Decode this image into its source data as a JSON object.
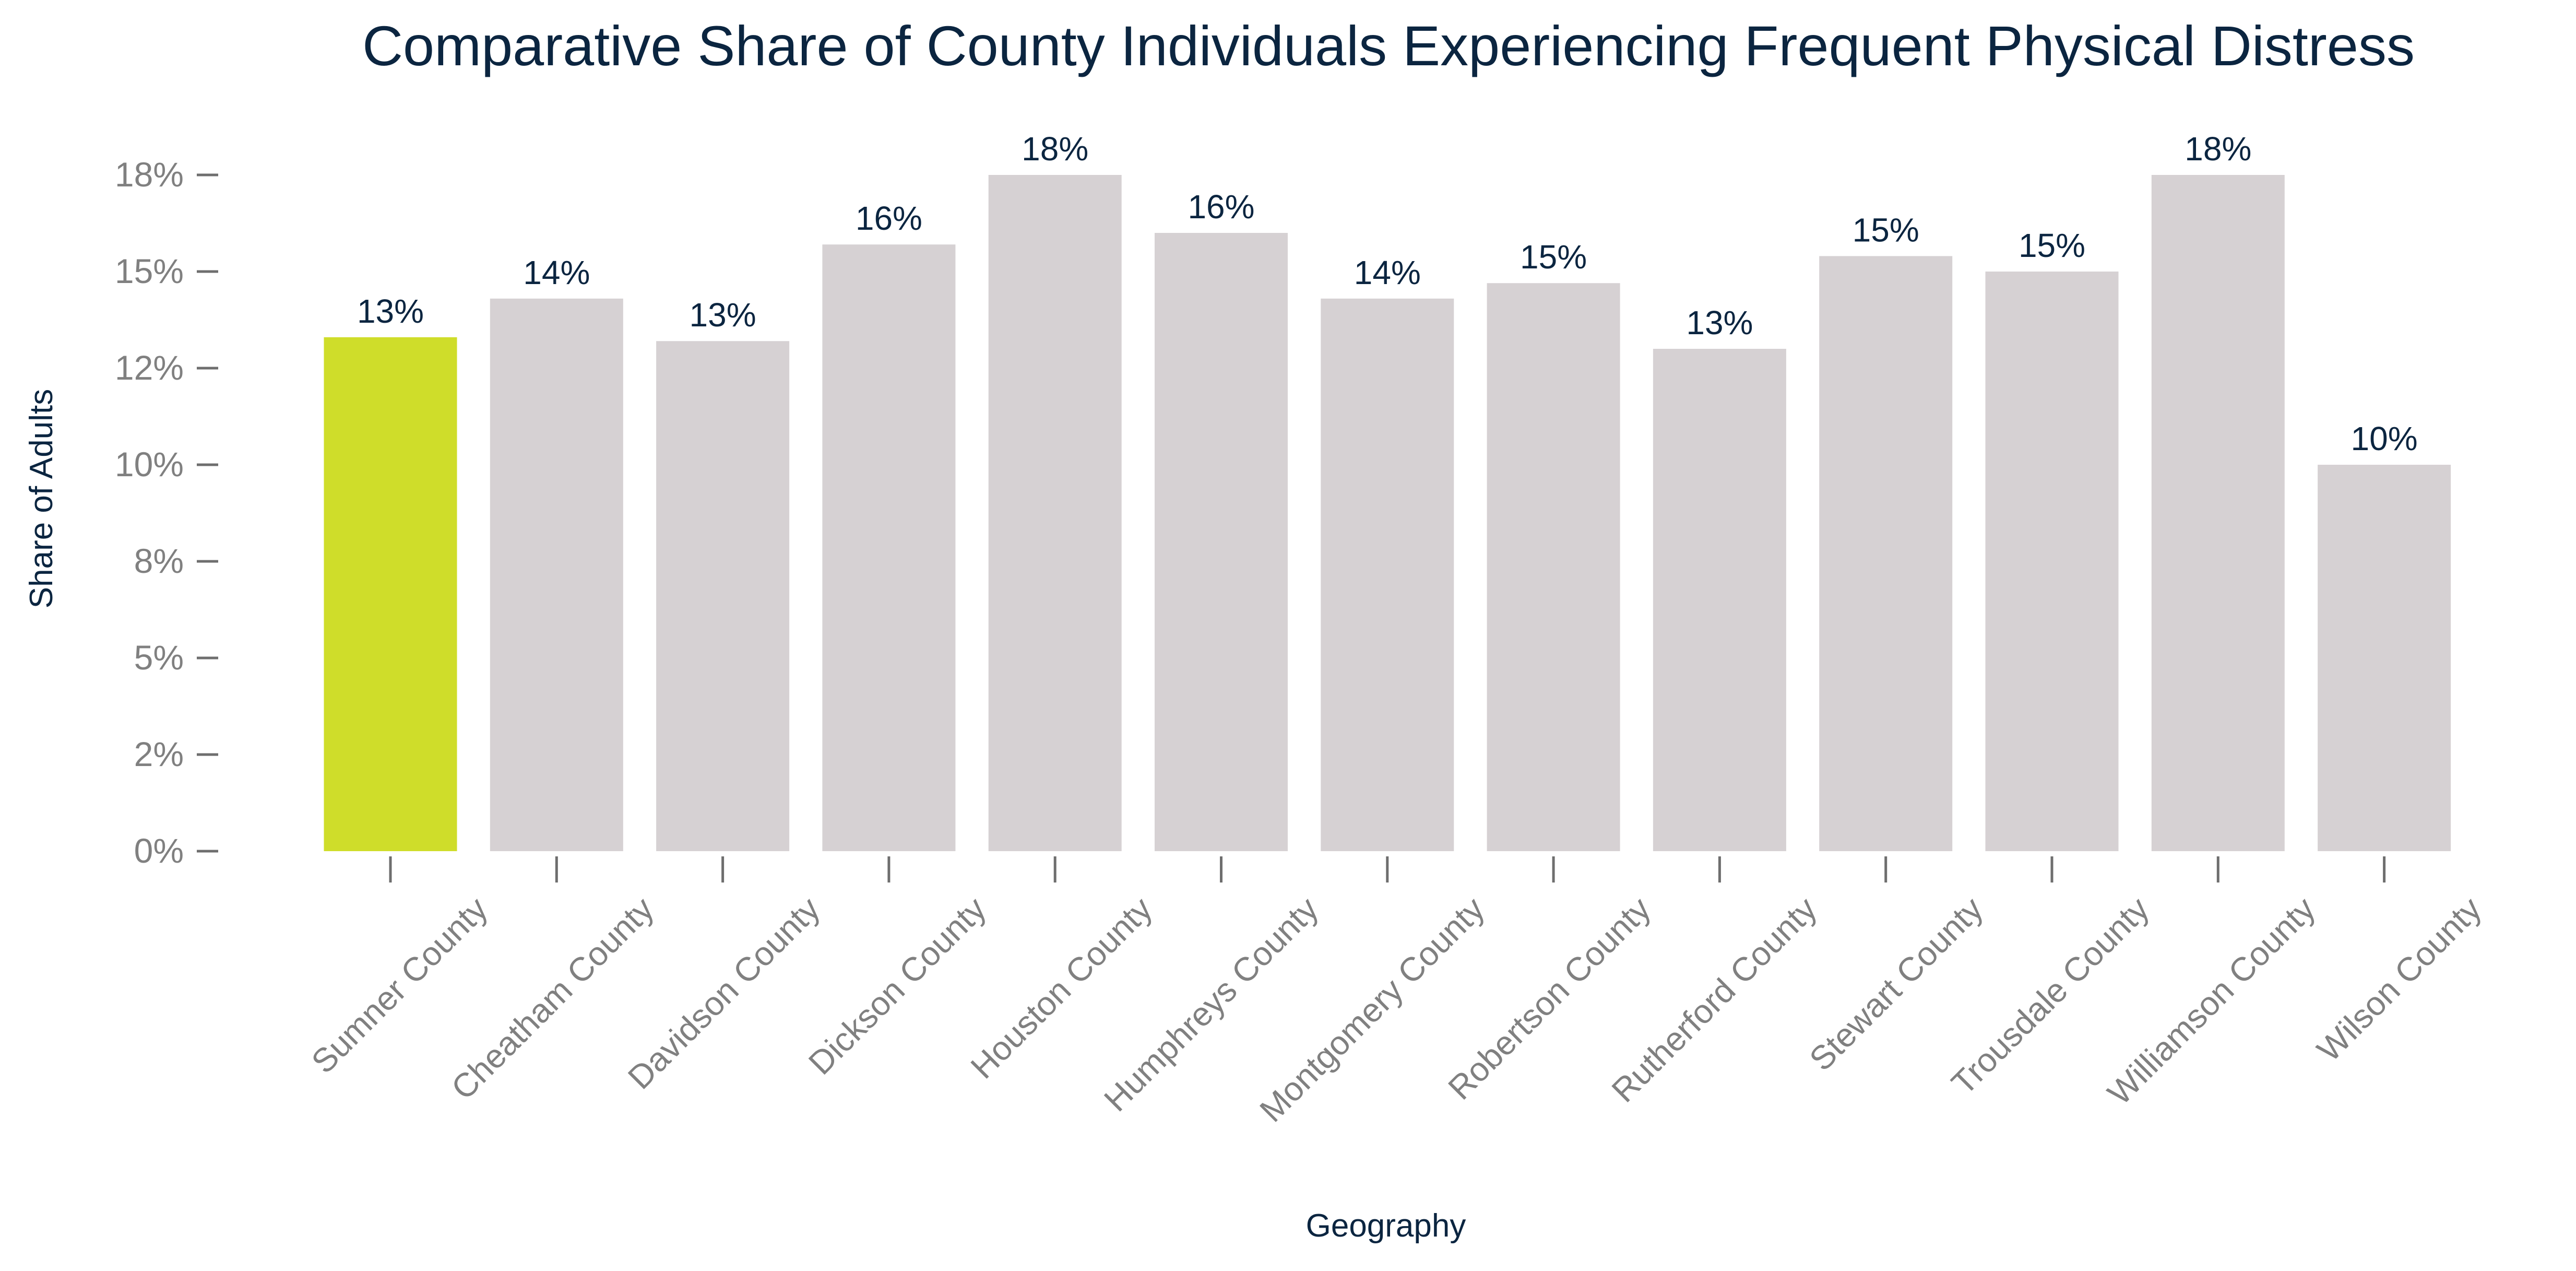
{
  "chart_data": {
    "type": "bar",
    "title": "Comparative Share of County Individuals Experiencing Frequent Physical Distress",
    "xlabel": "Geography",
    "ylabel": "Share of Adults",
    "categories": [
      "Sumner County",
      "Cheatham County",
      "Davidson County",
      "Dickson County",
      "Houston County",
      "Humphreys County",
      "Montgomery County",
      "Robertson County",
      "Rutherford County",
      "Stewart County",
      "Trousdale County",
      "Williamson County",
      "Wilson County"
    ],
    "values": [
      13.3,
      14.3,
      13.2,
      15.7,
      17.5,
      16.0,
      14.3,
      14.7,
      13.0,
      15.4,
      15.0,
      17.5,
      10.0
    ],
    "data_labels": [
      "13%",
      "14%",
      "13%",
      "16%",
      "18%",
      "16%",
      "14%",
      "15%",
      "13%",
      "15%",
      "15%",
      "18%",
      "10%"
    ],
    "y_ticks": [
      0,
      2.5,
      5,
      7.5,
      10,
      12.5,
      15,
      17.5
    ],
    "y_tick_labels": [
      "0%",
      "2%",
      "5%",
      "8%",
      "10%",
      "12%",
      "15%",
      "18%"
    ],
    "ylim": [
      0,
      17.5
    ],
    "highlight_index": 0,
    "grid": false,
    "legend": "none",
    "colors": {
      "highlight": "#CFDD2A",
      "bar": "#D6D1D3",
      "title": "#0B2540",
      "axis_text": "#808080",
      "tick": "#6E6E6E",
      "data_label": "#0B2540",
      "axis_label": "#0B2540"
    }
  }
}
